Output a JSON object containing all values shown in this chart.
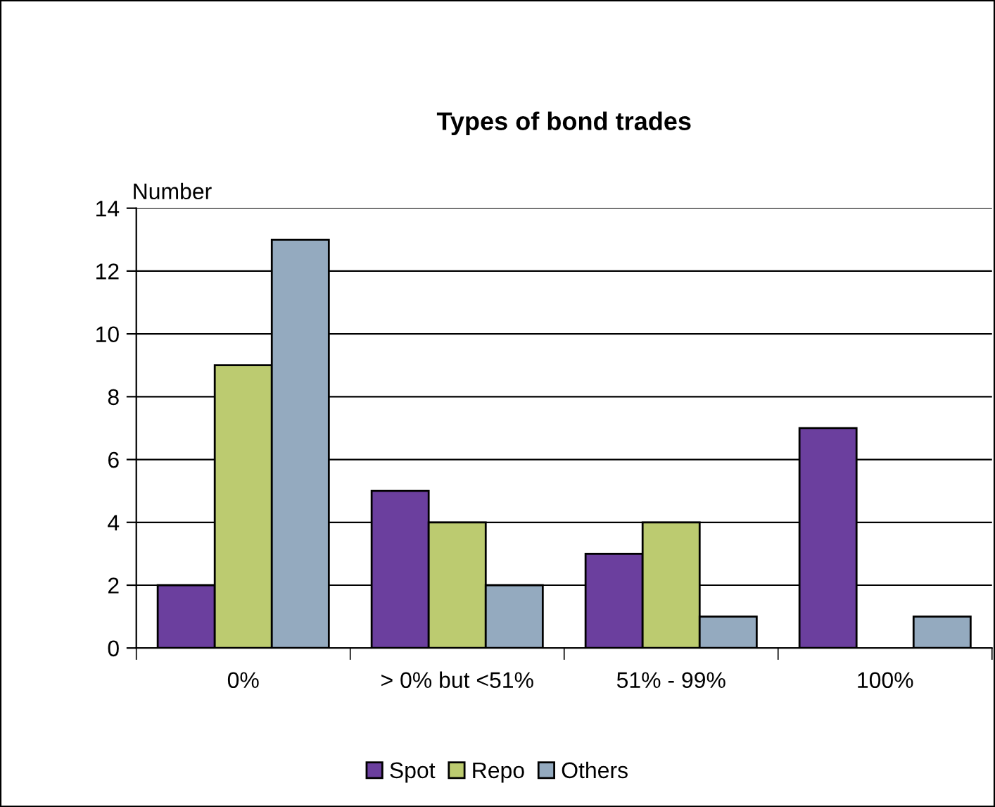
{
  "chart_data": {
    "type": "bar",
    "title": "Types of bond trades",
    "ylabel": "Number",
    "categories": [
      "0%",
      "> 0% but <51%",
      "51% - 99%",
      "100%"
    ],
    "series": [
      {
        "name": "Spot",
        "color": "#6b3f9e",
        "values": [
          2,
          5,
          3,
          7
        ]
      },
      {
        "name": "Repo",
        "color": "#bccb70",
        "values": [
          9,
          4,
          4,
          null
        ]
      },
      {
        "name": "Others",
        "color": "#94aabf",
        "values": [
          13,
          2,
          1,
          1
        ]
      }
    ],
    "ylim": [
      0,
      14
    ],
    "yticks": [
      0,
      2,
      4,
      6,
      8,
      10,
      12,
      14
    ],
    "grid": "y",
    "legend": "bottom"
  }
}
